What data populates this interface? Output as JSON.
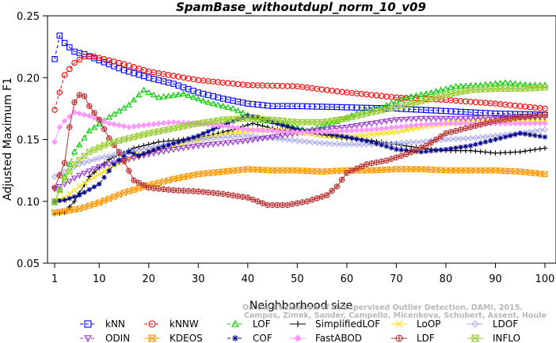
{
  "chart_data": {
    "type": "line",
    "title": "SpamBase_withoutdupl_norm_10_v09",
    "xlabel": "Neighborhood size",
    "ylabel": "Adjusted Maximum F1",
    "xlim": [
      1,
      100
    ],
    "ylim": [
      0.05,
      0.25
    ],
    "x_ticks": [
      1,
      10,
      20,
      30,
      40,
      50,
      60,
      70,
      80,
      90,
      100
    ],
    "y_ticks": [
      "0.05",
      "0.10",
      "0.15",
      "0.20",
      "0.25"
    ],
    "legend_position": "bottom",
    "grid": false,
    "watermark": [
      "Campos, Zimek, Sander, Campello, Micenkova, Schubert, Assent, Houle",
      "On the Evaluation of Unsupervised Outlier Detection. DAMI, 2015."
    ],
    "series": [
      {
        "name": "kNN",
        "color": "#0000ff",
        "marker": "square",
        "dash": "4,3",
        "points": [
          [
            1,
            0.215
          ],
          [
            2,
            0.234
          ],
          [
            3,
            0.228
          ],
          [
            5,
            0.221
          ],
          [
            7,
            0.219
          ],
          [
            10,
            0.214
          ],
          [
            15,
            0.206
          ],
          [
            20,
            0.2
          ],
          [
            25,
            0.195
          ],
          [
            30,
            0.188
          ],
          [
            35,
            0.183
          ],
          [
            40,
            0.179
          ],
          [
            45,
            0.177
          ],
          [
            50,
            0.177
          ],
          [
            60,
            0.176
          ],
          [
            70,
            0.175
          ],
          [
            80,
            0.173
          ],
          [
            90,
            0.171
          ],
          [
            100,
            0.17
          ]
        ]
      },
      {
        "name": "kNNW",
        "color": "#ff0000",
        "marker": "circle",
        "dash": "4,3",
        "points": [
          [
            1,
            0.174
          ],
          [
            2,
            0.188
          ],
          [
            3,
            0.202
          ],
          [
            5,
            0.212
          ],
          [
            7,
            0.217
          ],
          [
            9,
            0.217
          ],
          [
            12,
            0.214
          ],
          [
            15,
            0.211
          ],
          [
            20,
            0.205
          ],
          [
            30,
            0.198
          ],
          [
            40,
            0.194
          ],
          [
            50,
            0.193
          ],
          [
            60,
            0.188
          ],
          [
            70,
            0.184
          ],
          [
            80,
            0.182
          ],
          [
            90,
            0.179
          ],
          [
            100,
            0.175
          ]
        ]
      },
      {
        "name": "LOF",
        "color": "#00cc00",
        "marker": "triangle-up",
        "dash": "4,3",
        "points": [
          [
            1,
            0.099
          ],
          [
            3,
            0.12
          ],
          [
            5,
            0.14
          ],
          [
            8,
            0.157
          ],
          [
            12,
            0.168
          ],
          [
            16,
            0.178
          ],
          [
            19,
            0.19
          ],
          [
            22,
            0.184
          ],
          [
            27,
            0.187
          ],
          [
            32,
            0.18
          ],
          [
            37,
            0.175
          ],
          [
            42,
            0.166
          ],
          [
            46,
            0.164
          ],
          [
            52,
            0.157
          ],
          [
            57,
            0.163
          ],
          [
            62,
            0.171
          ],
          [
            67,
            0.176
          ],
          [
            72,
            0.184
          ],
          [
            77,
            0.188
          ],
          [
            82,
            0.193
          ],
          [
            87,
            0.194
          ],
          [
            92,
            0.196
          ],
          [
            97,
            0.194
          ],
          [
            100,
            0.194
          ]
        ]
      },
      {
        "name": "SimplifiedLOF",
        "color": "#000000",
        "marker": "plus",
        "dash": "",
        "points": [
          [
            1,
            0.09
          ],
          [
            3,
            0.091
          ],
          [
            5,
            0.1
          ],
          [
            8,
            0.12
          ],
          [
            12,
            0.134
          ],
          [
            17,
            0.143
          ],
          [
            22,
            0.148
          ],
          [
            27,
            0.15
          ],
          [
            32,
            0.153
          ],
          [
            37,
            0.158
          ],
          [
            41,
            0.163
          ],
          [
            46,
            0.158
          ],
          [
            50,
            0.157
          ],
          [
            55,
            0.154
          ],
          [
            60,
            0.151
          ],
          [
            65,
            0.149
          ],
          [
            70,
            0.146
          ],
          [
            75,
            0.143
          ],
          [
            80,
            0.141
          ],
          [
            85,
            0.141
          ],
          [
            90,
            0.139
          ],
          [
            95,
            0.14
          ],
          [
            100,
            0.143
          ]
        ]
      },
      {
        "name": "LoOP",
        "color": "#ffdd00",
        "marker": "x",
        "dash": "",
        "points": [
          [
            1,
            0.1
          ],
          [
            3,
            0.103
          ],
          [
            6,
            0.112
          ],
          [
            10,
            0.122
          ],
          [
            15,
            0.133
          ],
          [
            20,
            0.14
          ],
          [
            25,
            0.145
          ],
          [
            30,
            0.15
          ],
          [
            35,
            0.154
          ],
          [
            40,
            0.157
          ],
          [
            45,
            0.158
          ],
          [
            50,
            0.156
          ],
          [
            55,
            0.153
          ],
          [
            60,
            0.152
          ],
          [
            65,
            0.154
          ],
          [
            70,
            0.156
          ],
          [
            75,
            0.16
          ],
          [
            80,
            0.163
          ],
          [
            85,
            0.165
          ],
          [
            90,
            0.166
          ],
          [
            95,
            0.166
          ],
          [
            100,
            0.166
          ]
        ]
      },
      {
        "name": "LDOF",
        "color": "#aaaaee",
        "marker": "diamond",
        "dash": "",
        "points": [
          [
            1,
            0.12
          ],
          [
            3,
            0.124
          ],
          [
            6,
            0.13
          ],
          [
            10,
            0.135
          ],
          [
            15,
            0.139
          ],
          [
            20,
            0.143
          ],
          [
            25,
            0.147
          ],
          [
            30,
            0.15
          ],
          [
            35,
            0.152
          ],
          [
            40,
            0.153
          ],
          [
            45,
            0.151
          ],
          [
            50,
            0.149
          ],
          [
            55,
            0.147
          ],
          [
            60,
            0.146
          ],
          [
            65,
            0.146
          ],
          [
            70,
            0.147
          ],
          [
            75,
            0.148
          ],
          [
            80,
            0.15
          ],
          [
            85,
            0.151
          ],
          [
            90,
            0.153
          ],
          [
            95,
            0.155
          ],
          [
            100,
            0.158
          ]
        ]
      },
      {
        "name": "ODIN",
        "color": "#9933cc",
        "marker": "triangle-down",
        "dash": "4,3",
        "points": [
          [
            1,
            0.11
          ],
          [
            3,
            0.114
          ],
          [
            6,
            0.121
          ],
          [
            10,
            0.128
          ],
          [
            15,
            0.133
          ],
          [
            20,
            0.138
          ],
          [
            25,
            0.142
          ],
          [
            30,
            0.145
          ],
          [
            35,
            0.147
          ],
          [
            40,
            0.149
          ],
          [
            45,
            0.152
          ],
          [
            50,
            0.155
          ],
          [
            55,
            0.158
          ],
          [
            60,
            0.16
          ],
          [
            65,
            0.163
          ],
          [
            70,
            0.166
          ],
          [
            75,
            0.167
          ],
          [
            80,
            0.167
          ],
          [
            85,
            0.167
          ],
          [
            90,
            0.168
          ],
          [
            95,
            0.168
          ],
          [
            100,
            0.168
          ]
        ]
      },
      {
        "name": "KDEOS",
        "color": "#ff9900",
        "marker": "square-x",
        "dash": "",
        "points": [
          [
            1,
            0.091
          ],
          [
            3,
            0.092
          ],
          [
            6,
            0.094
          ],
          [
            10,
            0.099
          ],
          [
            15,
            0.107
          ],
          [
            20,
            0.113
          ],
          [
            25,
            0.118
          ],
          [
            30,
            0.122
          ],
          [
            35,
            0.124
          ],
          [
            40,
            0.126
          ],
          [
            45,
            0.125
          ],
          [
            50,
            0.125
          ],
          [
            55,
            0.124
          ],
          [
            60,
            0.125
          ],
          [
            65,
            0.125
          ],
          [
            70,
            0.126
          ],
          [
            75,
            0.126
          ],
          [
            80,
            0.125
          ],
          [
            85,
            0.125
          ],
          [
            90,
            0.125
          ],
          [
            95,
            0.124
          ],
          [
            100,
            0.122
          ]
        ]
      },
      {
        "name": "COF",
        "color": "#000088",
        "marker": "star",
        "dash": "4,3",
        "points": [
          [
            1,
            0.1
          ],
          [
            3,
            0.101
          ],
          [
            6,
            0.105
          ],
          [
            10,
            0.114
          ],
          [
            13,
            0.13
          ],
          [
            16,
            0.14
          ],
          [
            18,
            0.137
          ],
          [
            22,
            0.143
          ],
          [
            26,
            0.148
          ],
          [
            30,
            0.153
          ],
          [
            34,
            0.16
          ],
          [
            37,
            0.165
          ],
          [
            40,
            0.169
          ],
          [
            42,
            0.168
          ],
          [
            45,
            0.164
          ],
          [
            50,
            0.158
          ],
          [
            55,
            0.155
          ],
          [
            60,
            0.152
          ],
          [
            65,
            0.148
          ],
          [
            70,
            0.142
          ],
          [
            75,
            0.14
          ],
          [
            80,
            0.142
          ],
          [
            85,
            0.145
          ],
          [
            90,
            0.15
          ],
          [
            95,
            0.155
          ],
          [
            100,
            0.152
          ]
        ]
      },
      {
        "name": "FastABOD",
        "color": "#ff99ff",
        "marker": "diamond-filled",
        "dash": "",
        "points": [
          [
            1,
            0.148
          ],
          [
            2,
            0.16
          ],
          [
            3,
            0.165
          ],
          [
            5,
            0.172
          ],
          [
            8,
            0.169
          ],
          [
            12,
            0.163
          ],
          [
            16,
            0.16
          ],
          [
            20,
            0.162
          ],
          [
            25,
            0.164
          ],
          [
            30,
            0.163
          ],
          [
            35,
            0.161
          ],
          [
            40,
            0.158
          ],
          [
            45,
            0.157
          ],
          [
            50,
            0.156
          ],
          [
            55,
            0.156
          ],
          [
            60,
            0.157
          ],
          [
            65,
            0.158
          ],
          [
            70,
            0.16
          ],
          [
            75,
            0.162
          ],
          [
            80,
            0.163
          ],
          [
            85,
            0.163
          ],
          [
            90,
            0.163
          ],
          [
            95,
            0.163
          ],
          [
            100,
            0.163
          ]
        ]
      },
      {
        "name": "LDF",
        "color": "#bb3333",
        "marker": "circle-plus",
        "dash": "",
        "points": [
          [
            1,
            0.111
          ],
          [
            3,
            0.131
          ],
          [
            4,
            0.16
          ],
          [
            5,
            0.18
          ],
          [
            6,
            0.186
          ],
          [
            7,
            0.185
          ],
          [
            8,
            0.177
          ],
          [
            10,
            0.166
          ],
          [
            12,
            0.151
          ],
          [
            14,
            0.14
          ],
          [
            17,
            0.117
          ],
          [
            20,
            0.111
          ],
          [
            25,
            0.109
          ],
          [
            30,
            0.108
          ],
          [
            35,
            0.106
          ],
          [
            40,
            0.103
          ],
          [
            44,
            0.097
          ],
          [
            48,
            0.097
          ],
          [
            52,
            0.1
          ],
          [
            56,
            0.105
          ],
          [
            58,
            0.112
          ],
          [
            60,
            0.123
          ],
          [
            64,
            0.13
          ],
          [
            68,
            0.133
          ],
          [
            72,
            0.138
          ],
          [
            76,
            0.145
          ],
          [
            80,
            0.155
          ],
          [
            85,
            0.16
          ],
          [
            90,
            0.165
          ],
          [
            95,
            0.168
          ],
          [
            100,
            0.17
          ]
        ]
      },
      {
        "name": "INFLO",
        "color": "#99cc33",
        "marker": "square-x",
        "dash": "",
        "points": [
          [
            1,
            0.1
          ],
          [
            3,
            0.118
          ],
          [
            5,
            0.13
          ],
          [
            8,
            0.14
          ],
          [
            12,
            0.147
          ],
          [
            16,
            0.151
          ],
          [
            20,
            0.155
          ],
          [
            25,
            0.159
          ],
          [
            30,
            0.163
          ],
          [
            35,
            0.166
          ],
          [
            40,
            0.167
          ],
          [
            45,
            0.166
          ],
          [
            50,
            0.164
          ],
          [
            55,
            0.164
          ],
          [
            60,
            0.167
          ],
          [
            65,
            0.172
          ],
          [
            70,
            0.176
          ],
          [
            75,
            0.181
          ],
          [
            80,
            0.186
          ],
          [
            85,
            0.19
          ],
          [
            90,
            0.191
          ],
          [
            95,
            0.191
          ],
          [
            100,
            0.192
          ]
        ]
      }
    ]
  }
}
